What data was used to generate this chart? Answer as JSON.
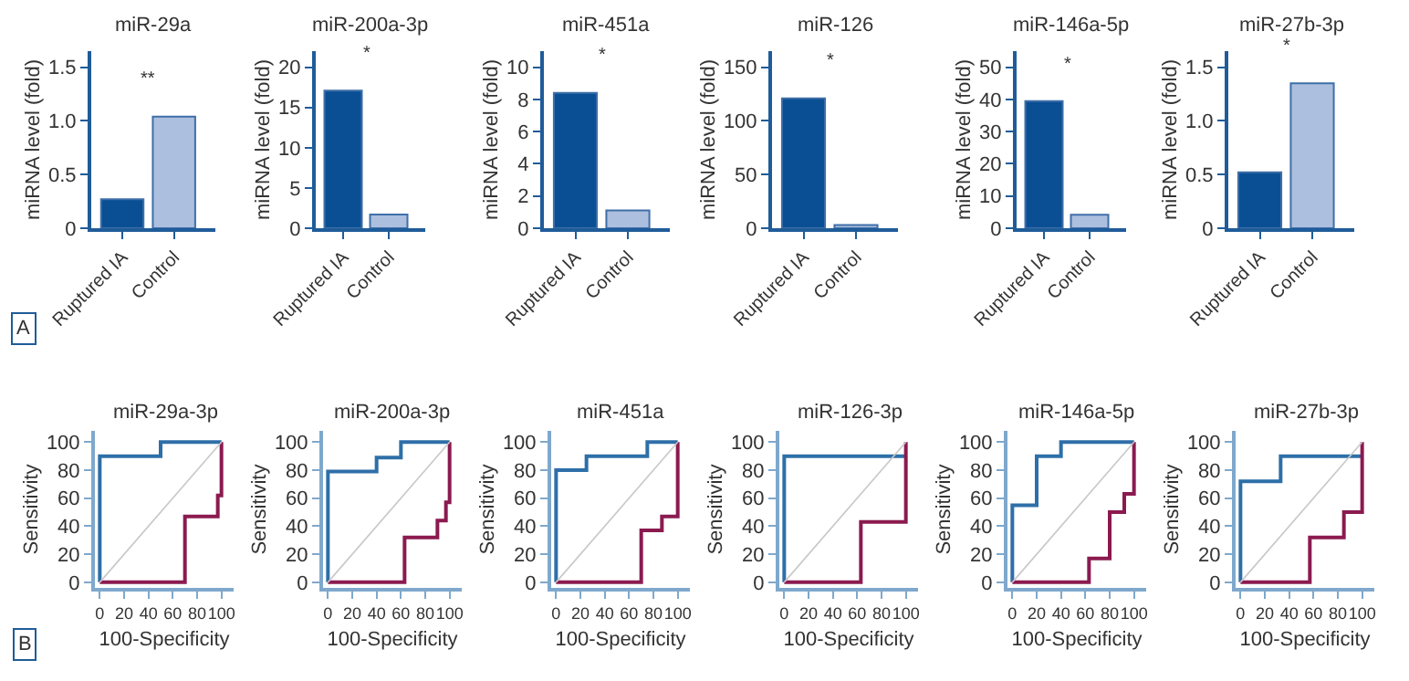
{
  "chart_data": [
    {
      "type": "bar",
      "title": "miR-29a",
      "ylabel": "miRNA level (fold)",
      "categories": [
        "Ruptured IA",
        "Control"
      ],
      "values": [
        0.27,
        1.04
      ],
      "colors": [
        "#0a4f94",
        "#adbfde"
      ],
      "ylim": [
        0,
        1.65
      ],
      "yticks": [
        0,
        0.5,
        {
          "value": 1,
          "label": "1.0"
        },
        1.5
      ],
      "annotations": [
        "**",
        "A"
      ]
    },
    {
      "type": "bar",
      "title": "miR-200a-3p",
      "ylabel": "miRNA level (fold)",
      "categories": [
        "Ruptured IA",
        "Control"
      ],
      "values": [
        17.1,
        1.7
      ],
      "colors": [
        "#0a4f94",
        "#adbfde"
      ],
      "ylim": [
        0,
        22
      ],
      "yticks": [
        0,
        5,
        10,
        15,
        20
      ],
      "annotations": [
        "*"
      ]
    },
    {
      "type": "bar",
      "title": "miR-451a",
      "ylabel": "miRNA level (fold)",
      "categories": [
        "Ruptured IA",
        "Control"
      ],
      "values": [
        8.4,
        1.1
      ],
      "colors": [
        "#0a4f94",
        "#adbfde"
      ],
      "ylim": [
        0,
        11
      ],
      "yticks": [
        0,
        2,
        4,
        6,
        8,
        10
      ],
      "annotations": [
        "*"
      ]
    },
    {
      "type": "bar",
      "title": "miR-126",
      "ylabel": "miRNA level (fold)",
      "categories": [
        "Ruptured IA",
        "Control"
      ],
      "values": [
        121,
        3
      ],
      "colors": [
        "#0a4f94",
        "#adbfde"
      ],
      "ylim": [
        0,
        165
      ],
      "yticks": [
        0,
        50,
        100,
        150
      ],
      "annotations": [
        "*"
      ]
    },
    {
      "type": "bar",
      "title": "miR-146a-5p",
      "ylabel": "miRNA level (fold)",
      "categories": [
        "Ruptured IA",
        "Control"
      ],
      "values": [
        39.5,
        4.2
      ],
      "colors": [
        "#0a4f94",
        "#adbfde"
      ],
      "ylim": [
        0,
        55
      ],
      "yticks": [
        0,
        10,
        20,
        30,
        40,
        50
      ],
      "annotations": [
        "*"
      ]
    },
    {
      "type": "bar",
      "title": "miR-27b-3p",
      "ylabel": "miRNA level (fold)",
      "categories": [
        "Ruptured IA",
        "Control"
      ],
      "values": [
        0.52,
        1.35
      ],
      "colors": [
        "#0a4f94",
        "#adbfde"
      ],
      "ylim": [
        0,
        1.65
      ],
      "yticks": [
        0,
        0.5,
        {
          "value": 1,
          "label": "1.0"
        },
        1.5
      ],
      "annotations": [
        "*"
      ]
    },
    {
      "type": "line",
      "title": "miR-29a-3p",
      "xlabel": "100-Specificity",
      "ylabel": "Sensitivity",
      "xlim": [
        -4,
        110
      ],
      "ylim": [
        -4,
        108
      ],
      "xticks": [
        0,
        20,
        40,
        60,
        80,
        100
      ],
      "yticks": [
        0,
        20,
        40,
        60,
        80,
        100
      ],
      "marker": "none",
      "line_style": "solid",
      "annotations": [
        "B"
      ],
      "series": [
        {
          "color": "#2e6fa8",
          "x": [
            0,
            0,
            50,
            50,
            100
          ],
          "values": [
            0,
            90,
            90,
            100,
            100
          ]
        },
        {
          "color": "#8b1a4f",
          "x": [
            0,
            70,
            70,
            97,
            97,
            100,
            100
          ],
          "values": [
            0,
            0,
            47,
            47,
            62,
            62,
            100
          ]
        },
        {
          "color": "#c8c8c8",
          "x": [
            0,
            100
          ],
          "values": [
            0,
            100
          ]
        }
      ]
    },
    {
      "type": "line",
      "title": "miR-200a-3p",
      "xlabel": "100-Specificity",
      "ylabel": "Sensitivity",
      "xlim": [
        -4,
        110
      ],
      "ylim": [
        -4,
        108
      ],
      "xticks": [
        0,
        20,
        40,
        60,
        80,
        100
      ],
      "yticks": [
        0,
        20,
        40,
        60,
        80,
        100
      ],
      "marker": "none",
      "line_style": "solid",
      "series": [
        {
          "color": "#2e6fa8",
          "x": [
            0,
            0,
            40,
            40,
            60,
            60,
            100
          ],
          "values": [
            0,
            79,
            79,
            89,
            89,
            100,
            100
          ]
        },
        {
          "color": "#8b1a4f",
          "x": [
            0,
            63,
            63,
            90,
            90,
            97,
            97,
            100,
            100
          ],
          "values": [
            0,
            0,
            32,
            32,
            44,
            44,
            57,
            57,
            100
          ]
        },
        {
          "color": "#c8c8c8",
          "x": [
            0,
            100
          ],
          "values": [
            0,
            100
          ]
        }
      ]
    },
    {
      "type": "line",
      "title": "miR-451a",
      "xlabel": "100-Specificity",
      "ylabel": "Sensitivity",
      "xlim": [
        -4,
        110
      ],
      "ylim": [
        -4,
        108
      ],
      "xticks": [
        0,
        20,
        40,
        60,
        80,
        100
      ],
      "yticks": [
        0,
        20,
        40,
        60,
        80,
        100
      ],
      "marker": "none",
      "line_style": "solid",
      "series": [
        {
          "color": "#2e6fa8",
          "x": [
            0,
            0,
            25,
            25,
            75,
            75,
            100
          ],
          "values": [
            0,
            80,
            80,
            90,
            90,
            100,
            100
          ]
        },
        {
          "color": "#8b1a4f",
          "x": [
            0,
            70,
            70,
            87,
            87,
            100,
            100
          ],
          "values": [
            0,
            0,
            37,
            37,
            47,
            47,
            100
          ]
        },
        {
          "color": "#c8c8c8",
          "x": [
            0,
            100
          ],
          "values": [
            0,
            100
          ]
        }
      ]
    },
    {
      "type": "line",
      "title": "miR-126-3p",
      "xlabel": "100-Specificity",
      "ylabel": "Sensitivity",
      "xlim": [
        -4,
        110
      ],
      "ylim": [
        -4,
        108
      ],
      "xticks": [
        0,
        20,
        40,
        60,
        80,
        100
      ],
      "yticks": [
        0,
        20,
        40,
        60,
        80,
        100
      ],
      "marker": "none",
      "line_style": "solid",
      "series": [
        {
          "color": "#2e6fa8",
          "x": [
            0,
            0,
            100
          ],
          "values": [
            0,
            90,
            90
          ]
        },
        {
          "color": "#8b1a4f",
          "x": [
            0,
            63,
            63,
            100,
            100
          ],
          "values": [
            0,
            0,
            43,
            43,
            100
          ]
        },
        {
          "color": "#c8c8c8",
          "x": [
            0,
            100
          ],
          "values": [
            0,
            100
          ]
        }
      ]
    },
    {
      "type": "line",
      "title": "miR-146a-5p",
      "xlabel": "100-Specificity",
      "ylabel": "Sensitivity",
      "xlim": [
        -4,
        110
      ],
      "ylim": [
        -4,
        108
      ],
      "xticks": [
        0,
        20,
        40,
        60,
        80,
        100
      ],
      "yticks": [
        0,
        20,
        40,
        60,
        80,
        100
      ],
      "marker": "none",
      "line_style": "solid",
      "series": [
        {
          "color": "#2e6fa8",
          "x": [
            0,
            0,
            20,
            20,
            40,
            40,
            100
          ],
          "values": [
            0,
            55,
            55,
            90,
            90,
            100,
            100
          ]
        },
        {
          "color": "#8b1a4f",
          "x": [
            0,
            63,
            63,
            80,
            80,
            92,
            92,
            100,
            100
          ],
          "values": [
            0,
            0,
            17,
            17,
            50,
            50,
            63,
            63,
            100
          ]
        },
        {
          "color": "#c8c8c8",
          "x": [
            0,
            100
          ],
          "values": [
            0,
            100
          ]
        }
      ]
    },
    {
      "type": "line",
      "title": "miR-27b-3p",
      "xlabel": "100-Specificity",
      "ylabel": "Sensitivity",
      "xlim": [
        -4,
        110
      ],
      "ylim": [
        -4,
        108
      ],
      "xticks": [
        0,
        20,
        40,
        60,
        80,
        100
      ],
      "yticks": [
        0,
        20,
        40,
        60,
        80,
        100
      ],
      "marker": "none",
      "line_style": "solid",
      "series": [
        {
          "color": "#2e6fa8",
          "x": [
            0,
            0,
            33,
            33,
            100
          ],
          "values": [
            0,
            72,
            72,
            90,
            90
          ]
        },
        {
          "color": "#8b1a4f",
          "x": [
            0,
            57,
            57,
            85,
            85,
            100,
            100
          ],
          "values": [
            0,
            0,
            32,
            32,
            50,
            50,
            100
          ]
        },
        {
          "color": "#c8c8c8",
          "x": [
            0,
            100
          ],
          "values": [
            0,
            100
          ]
        }
      ]
    }
  ]
}
